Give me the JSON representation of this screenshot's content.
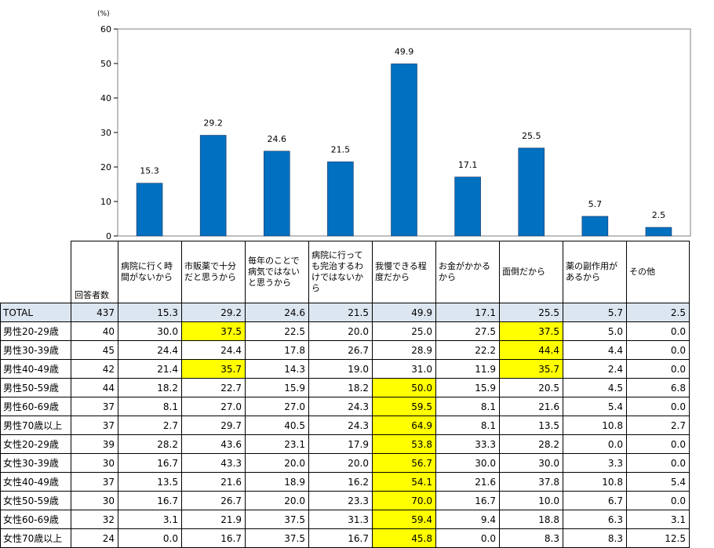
{
  "chart_data": {
    "type": "bar",
    "unit": "(%)",
    "unit_right": "(%)",
    "ylim": [
      0,
      60
    ],
    "yticks": [
      "0",
      "10",
      "20",
      "30",
      "40",
      "50",
      "60"
    ],
    "bar_color": "#0070c0",
    "highlight_color": "#ffff00",
    "total_row_color": "#dce6f1",
    "categories": [
      "病院に行く時間がないから",
      "市販薬で十分だと思うから",
      "毎年のことで病気ではないと思うから",
      "病院に行っても完治するわけではないから",
      "我慢できる程度だから",
      "お金がかかるから",
      "面倒だから",
      "薬の副作用があるから",
      "その他"
    ],
    "values": [
      15.3,
      29.2,
      24.6,
      21.5,
      49.9,
      17.1,
      25.5,
      5.7,
      2.5
    ],
    "value_labels": [
      "15.3",
      "29.2",
      "24.6",
      "21.5",
      "49.9",
      "17.1",
      "25.5",
      "5.7",
      "2.5"
    ]
  },
  "table": {
    "n_header": "回答者数",
    "rows": [
      {
        "label": "TOTAL",
        "n": "437",
        "values": [
          "15.3",
          "29.2",
          "24.6",
          "21.5",
          "49.9",
          "17.1",
          "25.5",
          "5.7",
          "2.5"
        ],
        "highlight": []
      },
      {
        "label": "男性20-29歳",
        "n": "40",
        "values": [
          "30.0",
          "37.5",
          "22.5",
          "20.0",
          "25.0",
          "27.5",
          "37.5",
          "5.0",
          "0.0"
        ],
        "highlight": [
          1,
          6
        ]
      },
      {
        "label": "男性30-39歳",
        "n": "45",
        "values": [
          "24.4",
          "24.4",
          "17.8",
          "26.7",
          "28.9",
          "22.2",
          "44.4",
          "4.4",
          "0.0"
        ],
        "highlight": [
          6
        ]
      },
      {
        "label": "男性40-49歳",
        "n": "42",
        "values": [
          "21.4",
          "35.7",
          "14.3",
          "19.0",
          "31.0",
          "11.9",
          "35.7",
          "2.4",
          "0.0"
        ],
        "highlight": [
          1,
          6
        ]
      },
      {
        "label": "男性50-59歳",
        "n": "44",
        "values": [
          "18.2",
          "22.7",
          "15.9",
          "18.2",
          "50.0",
          "15.9",
          "20.5",
          "4.5",
          "6.8"
        ],
        "highlight": [
          4
        ]
      },
      {
        "label": "男性60-69歳",
        "n": "37",
        "values": [
          "8.1",
          "27.0",
          "27.0",
          "24.3",
          "59.5",
          "8.1",
          "21.6",
          "5.4",
          "0.0"
        ],
        "highlight": [
          4
        ]
      },
      {
        "label": "男性70歳以上",
        "n": "37",
        "values": [
          "2.7",
          "29.7",
          "40.5",
          "24.3",
          "64.9",
          "8.1",
          "13.5",
          "10.8",
          "2.7"
        ],
        "highlight": [
          4
        ]
      },
      {
        "label": "女性20-29歳",
        "n": "39",
        "values": [
          "28.2",
          "43.6",
          "23.1",
          "17.9",
          "53.8",
          "33.3",
          "28.2",
          "0.0",
          "0.0"
        ],
        "highlight": [
          4
        ]
      },
      {
        "label": "女性30-39歳",
        "n": "30",
        "values": [
          "16.7",
          "43.3",
          "20.0",
          "20.0",
          "56.7",
          "30.0",
          "30.0",
          "3.3",
          "0.0"
        ],
        "highlight": [
          4
        ]
      },
      {
        "label": "女性40-49歳",
        "n": "37",
        "values": [
          "13.5",
          "21.6",
          "18.9",
          "16.2",
          "54.1",
          "21.6",
          "37.8",
          "10.8",
          "5.4"
        ],
        "highlight": [
          4
        ]
      },
      {
        "label": "女性50-59歳",
        "n": "30",
        "values": [
          "16.7",
          "26.7",
          "20.0",
          "23.3",
          "70.0",
          "16.7",
          "10.0",
          "6.7",
          "0.0"
        ],
        "highlight": [
          4
        ]
      },
      {
        "label": "女性60-69歳",
        "n": "32",
        "values": [
          "3.1",
          "21.9",
          "37.5",
          "31.3",
          "59.4",
          "9.4",
          "18.8",
          "6.3",
          "3.1"
        ],
        "highlight": [
          4
        ]
      },
      {
        "label": "女性70歳以上",
        "n": "24",
        "values": [
          "0.0",
          "16.7",
          "37.5",
          "16.7",
          "45.8",
          "0.0",
          "8.3",
          "8.3",
          "12.5"
        ],
        "highlight": [
          4
        ]
      }
    ]
  }
}
